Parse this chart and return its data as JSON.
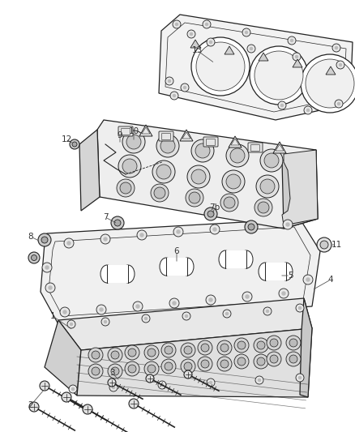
{
  "background_color": "#ffffff",
  "line_color": "#222222",
  "label_color": "#333333",
  "fig_width": 4.38,
  "fig_height": 5.33,
  "dpi": 100,
  "part_face": "#f5f5f5",
  "part_edge": "#222222",
  "part_dark": "#d8d8d8",
  "part_darker": "#c0c0c0"
}
